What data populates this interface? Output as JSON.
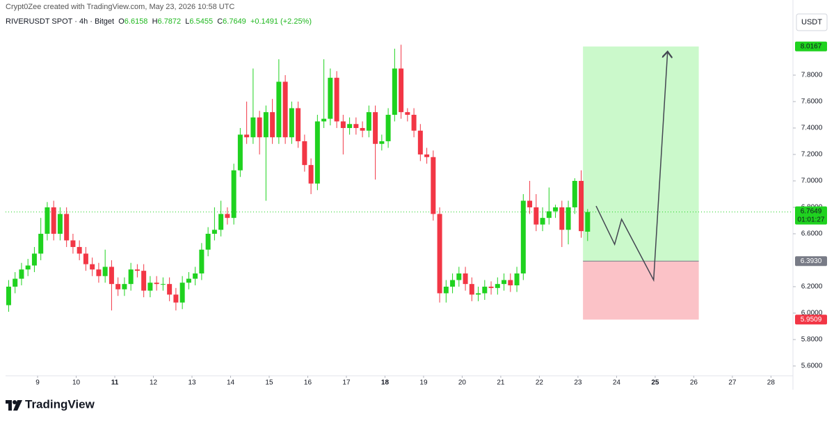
{
  "header": {
    "credit": "Crypt0Zee created with TradingView.com, May 23, 2026 10:58 UTC",
    "symbol": "RIVERUSDT SPOT · 4h · Bitget",
    "ohlc_letters": [
      "O",
      "H",
      "L",
      "C"
    ],
    "change": "+0.1491 (+2.25%)",
    "currency": "USDT"
  },
  "chart_data": {
    "type": "candlestick",
    "x": [
      8.25,
      8.4167,
      8.5833,
      8.75,
      8.9167,
      9.0833,
      9.25,
      9.4167,
      9.5833,
      9.75,
      9.9167,
      10.0833,
      10.25,
      10.4167,
      10.5833,
      10.75,
      10.9167,
      11.0833,
      11.25,
      11.4167,
      11.5833,
      11.75,
      11.9167,
      12.0833,
      12.25,
      12.4167,
      12.5833,
      12.75,
      12.9167,
      13.0833,
      13.25,
      13.4167,
      13.5833,
      13.75,
      13.9167,
      14.0833,
      14.25,
      14.4167,
      14.5833,
      14.75,
      14.9167,
      15.0833,
      15.25,
      15.4167,
      15.5833,
      15.75,
      15.9167,
      16.0833,
      16.25,
      16.4167,
      16.5833,
      16.75,
      16.9167,
      17.0833,
      17.25,
      17.4167,
      17.5833,
      17.75,
      17.9167,
      18.0833,
      18.25,
      18.4167,
      18.5833,
      18.75,
      18.9167,
      19.0833,
      19.25,
      19.4167,
      19.5833,
      19.75,
      19.9167,
      20.0833,
      20.25,
      20.4167,
      20.5833,
      20.75,
      20.9167,
      21.0833,
      21.25,
      21.4167,
      21.5833,
      21.75,
      21.9167,
      22.0833,
      22.25,
      22.4167,
      22.5833,
      22.75,
      22.9167,
      23.0833,
      23.25
    ],
    "open": [
      6.06,
      6.2,
      6.26,
      6.33,
      6.36,
      6.45,
      6.6,
      6.8,
      6.6,
      6.75,
      6.55,
      6.5,
      6.45,
      6.37,
      6.33,
      6.28,
      6.35,
      6.22,
      6.18,
      6.22,
      6.33,
      6.32,
      6.17,
      6.23,
      6.22,
      6.22,
      6.14,
      6.08,
      6.23,
      6.26,
      6.3,
      6.48,
      6.6,
      6.63,
      6.75,
      6.72,
      7.08,
      7.35,
      7.33,
      7.48,
      7.33,
      7.52,
      7.33,
      7.75,
      7.33,
      7.55,
      7.3,
      7.12,
      6.98,
      7.45,
      7.47,
      7.78,
      7.45,
      7.4,
      7.43,
      7.4,
      7.38,
      7.52,
      7.28,
      7.3,
      7.5,
      7.85,
      7.52,
      7.5,
      7.38,
      7.2,
      7.18,
      6.75,
      6.15,
      6.2,
      6.25,
      6.3,
      6.22,
      6.14,
      6.15,
      6.2,
      6.19,
      6.22,
      6.25,
      6.21,
      6.3,
      6.85,
      6.8,
      6.67,
      6.72,
      6.77,
      6.8,
      6.63,
      6.8,
      7.0,
      6.6158
    ],
    "high": [
      6.25,
      6.31,
      6.38,
      6.41,
      6.5,
      6.72,
      6.84,
      6.85,
      6.8,
      6.8,
      6.6,
      6.55,
      6.5,
      6.42,
      6.38,
      6.48,
      6.4,
      6.27,
      6.27,
      6.38,
      6.37,
      6.37,
      6.28,
      6.28,
      6.27,
      6.27,
      6.19,
      6.28,
      6.31,
      6.35,
      6.53,
      6.65,
      6.8,
      6.85,
      6.8,
      7.13,
      7.4,
      7.6,
      7.85,
      7.53,
      7.57,
      7.62,
      7.92,
      7.8,
      7.6,
      7.6,
      7.35,
      7.17,
      7.5,
      7.92,
      7.85,
      7.83,
      7.5,
      7.48,
      7.48,
      7.45,
      7.57,
      7.57,
      7.35,
      7.55,
      8.0,
      8.03,
      7.55,
      7.55,
      7.43,
      7.25,
      7.23,
      6.8,
      6.25,
      6.3,
      6.35,
      6.35,
      6.27,
      6.2,
      6.25,
      6.24,
      6.27,
      6.3,
      6.3,
      6.35,
      6.9,
      7.0,
      6.9,
      6.8,
      6.95,
      6.82,
      6.85,
      6.85,
      7.02,
      7.08,
      6.7872
    ],
    "low": [
      6.01,
      6.15,
      6.21,
      6.28,
      6.31,
      6.4,
      6.55,
      6.55,
      6.55,
      6.5,
      6.45,
      6.4,
      6.32,
      6.28,
      6.23,
      6.23,
      6.02,
      6.13,
      6.13,
      6.17,
      6.27,
      6.12,
      6.12,
      6.17,
      6.17,
      6.09,
      6.02,
      6.03,
      6.18,
      6.21,
      6.25,
      6.43,
      6.55,
      6.58,
      6.67,
      6.67,
      7.03,
      7.28,
      7.28,
      7.2,
      6.85,
      7.28,
      7.28,
      7.28,
      7.28,
      7.25,
      7.07,
      6.9,
      6.93,
      7.4,
      7.42,
      7.4,
      7.2,
      7.35,
      7.35,
      7.33,
      7.33,
      7.01,
      7.23,
      7.25,
      7.45,
      7.47,
      7.45,
      7.33,
      7.15,
      7.13,
      6.7,
      6.08,
      6.08,
      6.15,
      6.2,
      6.17,
      6.09,
      6.09,
      6.1,
      6.14,
      6.14,
      6.17,
      6.16,
      6.16,
      6.25,
      6.75,
      6.62,
      6.62,
      6.67,
      6.72,
      6.5,
      6.52,
      6.75,
      6.57,
      6.5455
    ],
    "close": [
      6.2,
      6.26,
      6.33,
      6.36,
      6.45,
      6.6,
      6.8,
      6.6,
      6.75,
      6.55,
      6.5,
      6.45,
      6.37,
      6.33,
      6.28,
      6.35,
      6.22,
      6.18,
      6.22,
      6.33,
      6.32,
      6.17,
      6.23,
      6.22,
      6.22,
      6.14,
      6.08,
      6.23,
      6.26,
      6.3,
      6.48,
      6.6,
      6.63,
      6.75,
      6.72,
      7.08,
      7.35,
      7.33,
      7.48,
      7.33,
      7.52,
      7.33,
      7.75,
      7.33,
      7.55,
      7.3,
      7.12,
      6.98,
      7.45,
      7.47,
      7.78,
      7.45,
      7.4,
      7.43,
      7.4,
      7.38,
      7.52,
      7.28,
      7.3,
      7.5,
      7.85,
      7.52,
      7.5,
      7.38,
      7.2,
      7.18,
      6.75,
      6.15,
      6.2,
      6.25,
      6.3,
      6.22,
      6.14,
      6.15,
      6.2,
      6.19,
      6.22,
      6.25,
      6.21,
      6.3,
      6.85,
      6.8,
      6.67,
      6.72,
      6.77,
      6.8,
      6.63,
      6.8,
      7.0,
      6.62,
      6.7649
    ],
    "up_color": "#1fd21f",
    "down_color": "#f23645",
    "xlim": [
      8.17,
      28.57
    ],
    "xticks": [
      9,
      10,
      11,
      12,
      13,
      14,
      15,
      16,
      17,
      18,
      19,
      20,
      21,
      22,
      23,
      24,
      25,
      26,
      27,
      28
    ],
    "xticks_bold": [
      11,
      18,
      25
    ],
    "ylim": [
      5.526,
      8.263
    ],
    "yticks": [
      {
        "value": 5.6,
        "label": "5.6000"
      },
      {
        "value": 5.8,
        "label": "5.8000"
      },
      {
        "value": 6.0,
        "label": "6.0000"
      },
      {
        "value": 6.2,
        "label": "6.2000"
      },
      {
        "value": 6.6,
        "label": "6.6000"
      },
      {
        "value": 6.8,
        "label": "6.8000"
      },
      {
        "value": 7.0,
        "label": "7.0000"
      },
      {
        "value": 7.2,
        "label": "7.2000"
      },
      {
        "value": 7.4,
        "label": "7.4000"
      },
      {
        "value": 7.6,
        "label": "7.6000"
      },
      {
        "value": 7.8,
        "label": "7.8000"
      }
    ],
    "grid": false,
    "countdown": "01:01:27",
    "position": {
      "x": [
        23.13,
        26.13
      ],
      "target": 8.0167,
      "entry": {
        "value": 6.393,
        "label": "6.3930"
      },
      "stop": 5.9509
    },
    "projection": {
      "x": [
        23.47,
        23.95,
        24.13,
        24.96,
        25.32
      ],
      "y": [
        6.81,
        6.52,
        6.71,
        6.25,
        7.97
      ]
    }
  },
  "footer": {
    "brand": "TradingView"
  }
}
